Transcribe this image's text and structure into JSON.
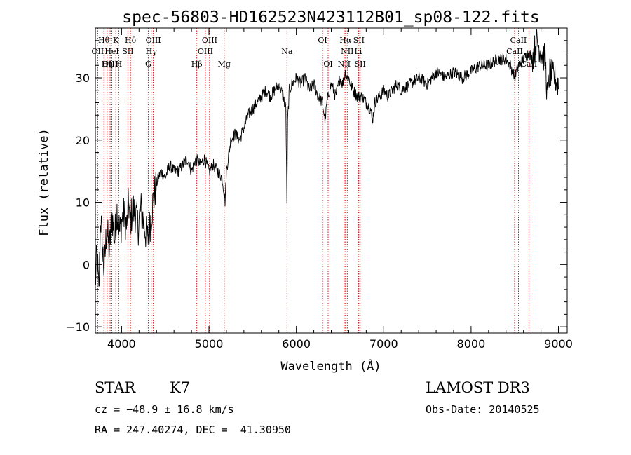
{
  "chart_data": {
    "type": "line",
    "title": "spec-56803-HD162523N423112B01_sp08-122.fits",
    "xlabel": "Wavelength (Å)",
    "ylabel": "Flux (relative)",
    "xlim": [
      3700,
      9100
    ],
    "ylim": [
      -11,
      38
    ],
    "x_ticks": [
      4000,
      5000,
      6000,
      7000,
      8000,
      9000
    ],
    "y_ticks": [
      -10,
      0,
      10,
      20,
      30
    ],
    "series": [
      {
        "name": "flux",
        "x": [
          3700,
          3720,
          3740,
          3760,
          3780,
          3800,
          3830,
          3860,
          3890,
          3920,
          3950,
          3980,
          4000,
          4030,
          4060,
          4080,
          4100,
          4130,
          4160,
          4190,
          4220,
          4250,
          4280,
          4300,
          4330,
          4360,
          4400,
          4450,
          4500,
          4550,
          4600,
          4650,
          4700,
          4750,
          4800,
          4850,
          4900,
          4950,
          5000,
          5050,
          5100,
          5150,
          5170,
          5185,
          5200,
          5250,
          5300,
          5350,
          5400,
          5450,
          5500,
          5550,
          5600,
          5650,
          5700,
          5750,
          5800,
          5850,
          5880,
          5893,
          5900,
          5920,
          5950,
          6000,
          6050,
          6100,
          6150,
          6200,
          6250,
          6300,
          6330,
          6350,
          6380,
          6400,
          6450,
          6500,
          6530,
          6563,
          6580,
          6600,
          6620,
          6650,
          6700,
          6750,
          6800,
          6850,
          6870,
          6900,
          6950,
          7000,
          7050,
          7100,
          7150,
          7200,
          7300,
          7400,
          7500,
          7600,
          7700,
          7800,
          7900,
          8000,
          8100,
          8200,
          8300,
          8400,
          8450,
          8498,
          8542,
          8600,
          8662,
          8700,
          8750,
          8800,
          8850,
          8870,
          8900,
          8950,
          9000
        ],
        "y": [
          -3,
          2,
          -5,
          8,
          3,
          -1,
          6,
          2,
          8,
          4,
          9,
          5,
          7,
          8,
          6,
          10,
          7,
          9,
          8,
          6,
          9,
          7,
          5,
          4,
          7,
          10,
          13,
          15,
          14,
          16,
          15,
          15,
          16,
          17,
          15,
          17,
          16,
          17,
          15,
          16,
          15,
          14,
          12,
          10,
          15,
          20,
          21,
          20,
          22,
          24,
          25,
          26,
          27,
          28,
          27,
          28,
          29,
          27,
          25,
          9,
          23,
          28,
          29,
          30,
          29,
          30,
          28,
          29,
          27,
          26,
          23,
          26,
          28,
          29,
          27,
          30,
          29,
          31,
          30,
          30,
          29,
          28,
          27,
          27,
          26,
          25,
          23,
          26,
          27,
          28,
          27,
          28,
          29,
          28,
          29,
          30,
          29,
          31,
          30,
          31,
          30,
          31,
          32,
          32,
          33,
          33,
          32,
          30,
          32,
          33,
          34,
          33,
          36,
          34,
          33,
          27,
          31,
          30,
          29
        ]
      }
    ],
    "lines": [
      {
        "name": "Hθ",
        "wl": 3798,
        "row": 1
      },
      {
        "name": "OII",
        "wl": 3727,
        "row": 2
      },
      {
        "name": "OIII",
        "wl": 3869,
        "row": 3
      },
      {
        "name": "K",
        "wl": 3934,
        "row": 1
      },
      {
        "name": "HeI",
        "wl": 3889,
        "row": 2
      },
      {
        "name": "Hη",
        "wl": 3835,
        "row": 3
      },
      {
        "name": "Hδ",
        "wl": 4102,
        "row": 1
      },
      {
        "name": "SII",
        "wl": 4072,
        "row": 2
      },
      {
        "name": "H",
        "wl": 3968,
        "row": 3
      },
      {
        "name": "OIII",
        "wl": 4363,
        "row": 1
      },
      {
        "name": "Hγ",
        "wl": 4340,
        "row": 2
      },
      {
        "name": "G",
        "wl": 4305,
        "row": 3
      },
      {
        "name": "OIII",
        "wl": 5007,
        "row": 1
      },
      {
        "name": "OIII",
        "wl": 4959,
        "row": 2
      },
      {
        "name": "Hβ",
        "wl": 4861,
        "row": 3
      },
      {
        "name": "Mg",
        "wl": 5175,
        "row": 3
      },
      {
        "name": "Na",
        "wl": 5893,
        "row": 2
      },
      {
        "name": "OI",
        "wl": 6300,
        "row": 1
      },
      {
        "name": "OI",
        "wl": 6364,
        "row": 3
      },
      {
        "name": "Hα",
        "wl": 6563,
        "row": 1
      },
      {
        "name": "SII",
        "wl": 6716,
        "row": 1
      },
      {
        "name": "NII",
        "wl": 6583,
        "row": 2
      },
      {
        "name": "Li",
        "wl": 6708,
        "row": 2
      },
      {
        "name": "NII",
        "wl": 6548,
        "row": 3
      },
      {
        "name": "SII",
        "wl": 6731,
        "row": 3
      },
      {
        "name": "CaII",
        "wl": 8542,
        "row": 1
      },
      {
        "name": "CaII",
        "wl": 8498,
        "row": 2
      },
      {
        "name": "CaII",
        "wl": 8662,
        "row": 3
      }
    ]
  },
  "info": {
    "class": "STAR",
    "subclass": "K7",
    "survey": "LAMOST DR3",
    "cz": "cz = −48.9 ± 16.8 km/s",
    "obs_date": "Obs-Date: 20140525",
    "coords": "RA = 247.40274, DEC =  41.30950"
  },
  "colors": {
    "spectrum": "#000000",
    "line_marker": "#cc0000"
  }
}
